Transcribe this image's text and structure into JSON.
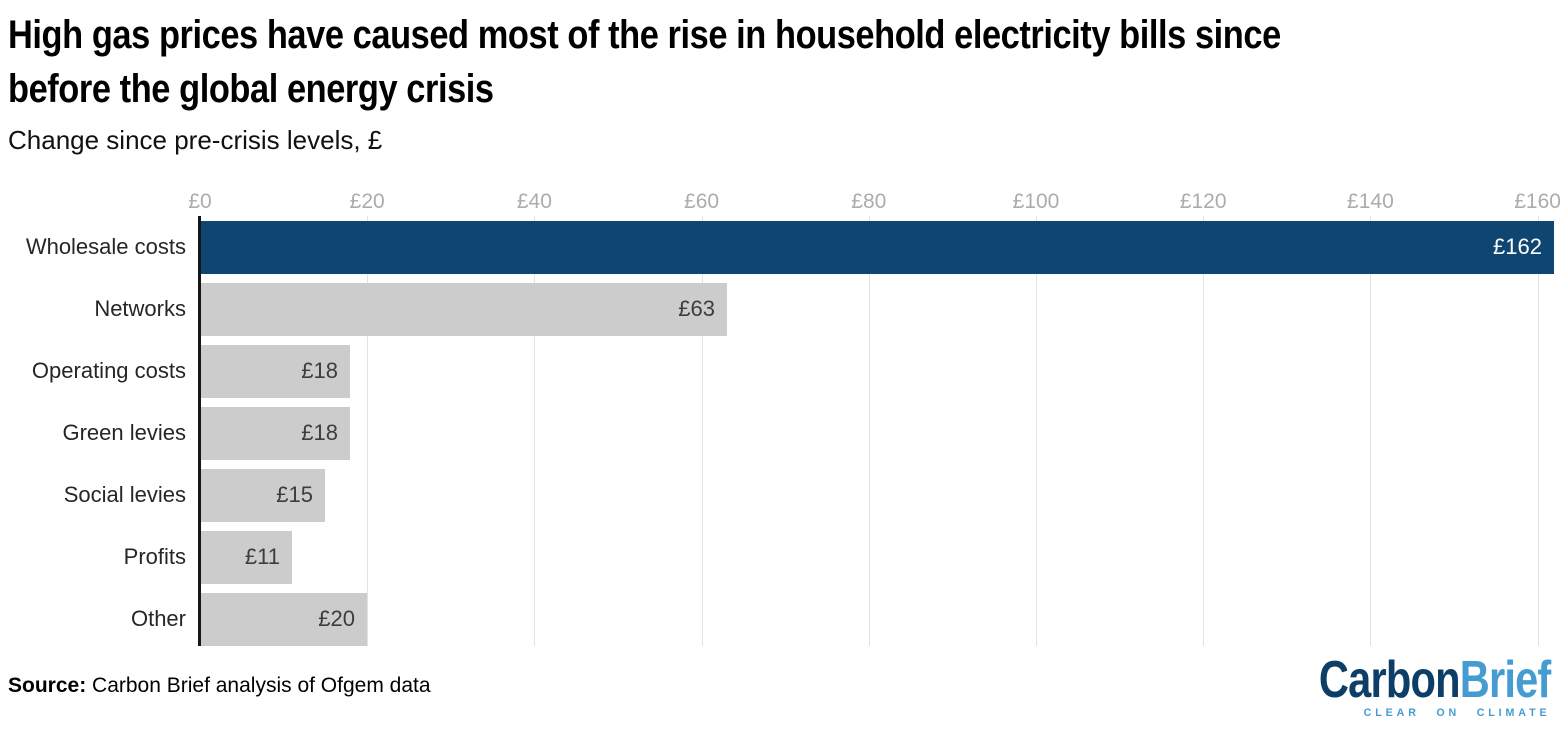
{
  "header": {
    "title_line1": "High gas prices have caused most of the rise in household electricity bills since",
    "title_line2": "before the global energy crisis",
    "subtitle": "Change since pre-crisis levels, £"
  },
  "chart_data": {
    "type": "bar",
    "orientation": "horizontal",
    "title": "High gas prices have caused most of the rise in household electricity bills since before the global energy crisis",
    "subtitle": "Change since pre-crisis levels, £",
    "categories": [
      "Wholesale costs",
      "Networks",
      "Operating costs",
      "Green levies",
      "Social levies",
      "Profits",
      "Other"
    ],
    "values": [
      162,
      63,
      18,
      18,
      15,
      11,
      20
    ],
    "value_labels": [
      "£162",
      "£63",
      "£18",
      "£18",
      "£15",
      "£11",
      "£20"
    ],
    "tick_values": [
      0,
      20,
      40,
      60,
      80,
      100,
      120,
      140,
      160
    ],
    "tick_labels": [
      "£0",
      "£20",
      "£40",
      "£60",
      "£80",
      "£100",
      "£120",
      "£140",
      "£160"
    ],
    "xlim": [
      0,
      162
    ],
    "grid": true,
    "legend": false,
    "highlight_index": 0,
    "highlight_color": "#0e4571",
    "default_color": "#cccccc",
    "value_label_color_on_highlight": "#ffffff",
    "value_label_color_on_default": "#3d3d3d"
  },
  "footer": {
    "source_prefix": "Source:",
    "source_text": "Carbon Brief analysis of Ofgem data",
    "logo": {
      "word_part1": "Carbon",
      "word_part2": "Brief",
      "tagline": "CLEAR ON CLIMATE",
      "navy": "#0c3e68",
      "light_blue": "#459cd2"
    }
  }
}
